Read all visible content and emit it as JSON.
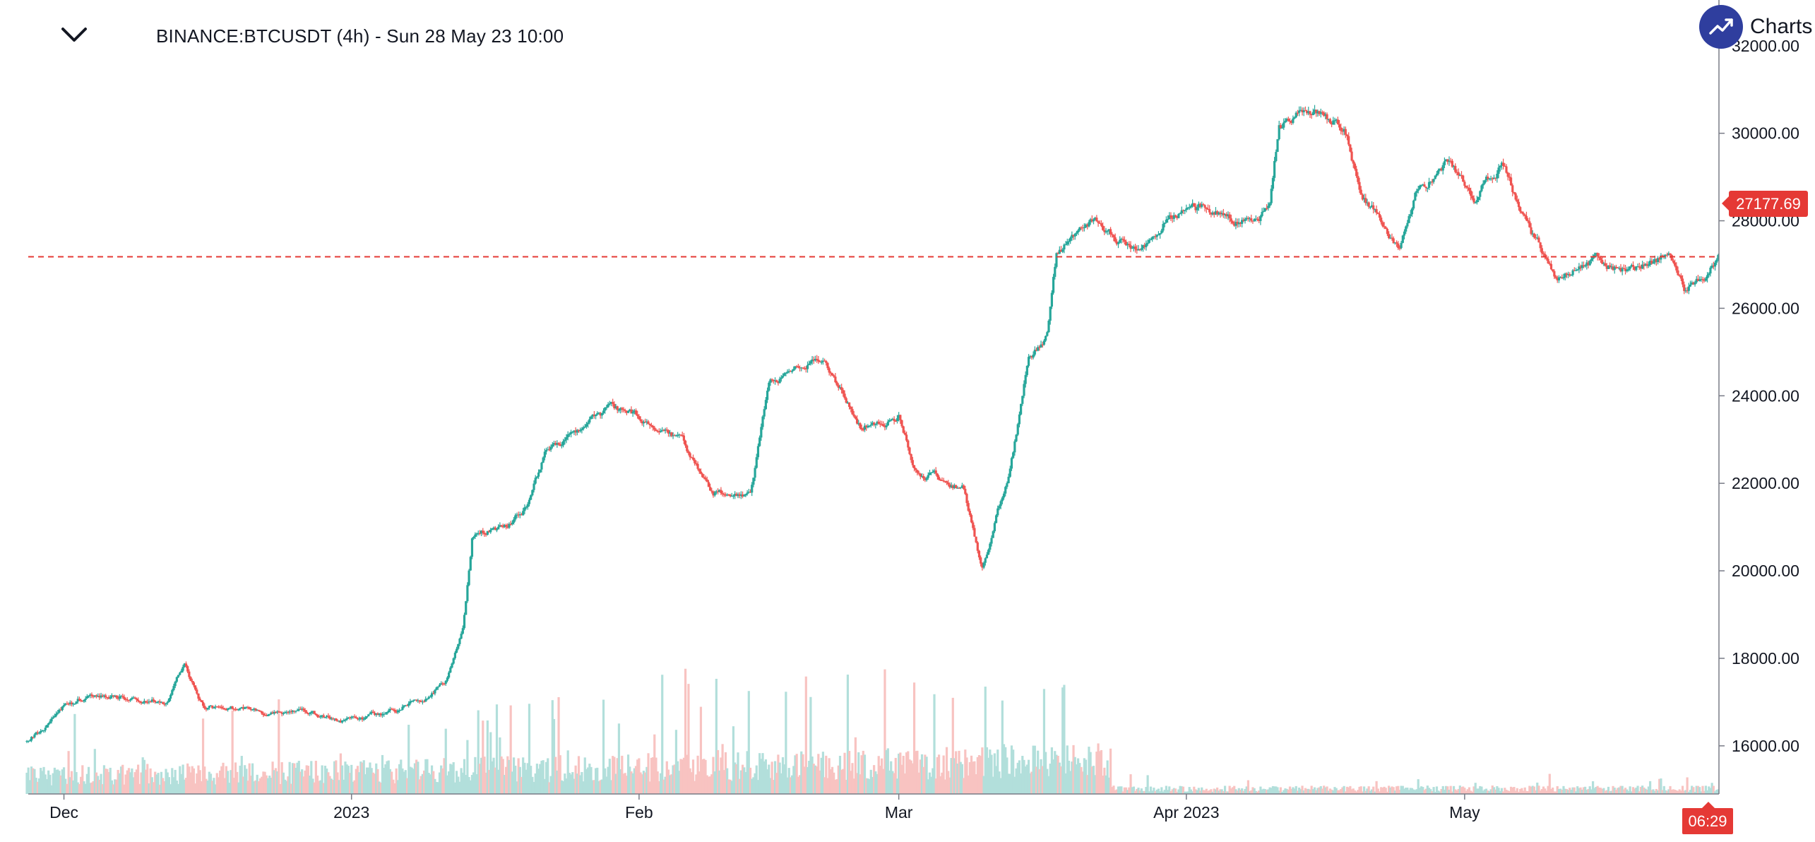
{
  "header": {
    "title": "BINANCE:BTCUSDT (4h) - Sun 28 May 23 10:00",
    "collapse_icon": "chevron-down-icon"
  },
  "brand": {
    "text": "Charts powered by TradingView",
    "logo_icon": "trend-up-icon",
    "logo_color": "#2f3e9e"
  },
  "last_price": {
    "label": "27177.69",
    "value": 27177.69,
    "color": "#e53935"
  },
  "countdown": {
    "label": "06:29"
  },
  "colors": {
    "up": "#26a69a",
    "down": "#ef5350",
    "volume_up": "#b2dfdb",
    "volume_down": "#f8c3c1",
    "axis": "#787b86",
    "text": "#131722"
  },
  "chart_data": {
    "type": "candlestick",
    "symbol": "BINANCE:BTCUSDT",
    "interval": "4h",
    "x_range": [
      "2022-11-27",
      "2023-05-28T10:00"
    ],
    "y_range": [
      14900,
      32400
    ],
    "x_ticks": [
      {
        "label": "Dec",
        "date": "2022-12-01"
      },
      {
        "label": "2023",
        "date": "2023-01-01"
      },
      {
        "label": "Feb",
        "date": "2023-02-01"
      },
      {
        "label": "Mar",
        "date": "2023-03-01"
      },
      {
        "label": "Apr 2023",
        "date": "2023-04-01"
      },
      {
        "label": "May",
        "date": "2023-05-01"
      }
    ],
    "y_ticks": [
      {
        "label": "32000.00",
        "value": 32000
      },
      {
        "label": "30000.00",
        "value": 30000
      },
      {
        "label": "28000.00",
        "value": 28000
      },
      {
        "label": "26000.00",
        "value": 26000
      },
      {
        "label": "24000.00",
        "value": 24000
      },
      {
        "label": "22000.00",
        "value": 22000
      },
      {
        "label": "20000.00",
        "value": 20000
      },
      {
        "label": "18000.00",
        "value": 18000
      },
      {
        "label": "16000.00",
        "value": 16000
      }
    ],
    "close_path": [
      [
        "2022-11-27",
        16100
      ],
      [
        "2022-11-29",
        16450
      ],
      [
        "2022-12-01",
        16950
      ],
      [
        "2022-12-05",
        17150
      ],
      [
        "2022-12-09",
        17100
      ],
      [
        "2022-12-12",
        17000
      ],
      [
        "2022-12-14",
        17800
      ],
      [
        "2022-12-16",
        16850
      ],
      [
        "2022-12-20",
        16800
      ],
      [
        "2022-12-27",
        16700
      ],
      [
        "2022-12-31",
        16550
      ],
      [
        "2023-01-06",
        16800
      ],
      [
        "2023-01-09",
        17150
      ],
      [
        "2023-01-11",
        17450
      ],
      [
        "2023-01-13",
        18800
      ],
      [
        "2023-01-14",
        20800
      ],
      [
        "2023-01-18",
        21100
      ],
      [
        "2023-01-20",
        21500
      ],
      [
        "2023-01-22",
        22700
      ],
      [
        "2023-01-25",
        23100
      ],
      [
        "2023-01-29",
        23700
      ],
      [
        "2023-02-02",
        23500
      ],
      [
        "2023-02-06",
        22800
      ],
      [
        "2023-02-09",
        21800
      ],
      [
        "2023-02-13",
        21750
      ],
      [
        "2023-02-15",
        24200
      ],
      [
        "2023-02-17",
        24600
      ],
      [
        "2023-02-21",
        24800
      ],
      [
        "2023-02-25",
        23300
      ],
      [
        "2023-03-01",
        23500
      ],
      [
        "2023-03-03",
        22300
      ],
      [
        "2023-03-08",
        21900
      ],
      [
        "2023-03-10",
        20100
      ],
      [
        "2023-03-13",
        22300
      ],
      [
        "2023-03-15",
        24800
      ],
      [
        "2023-03-17",
        25400
      ],
      [
        "2023-03-18",
        27300
      ],
      [
        "2023-03-22",
        28000
      ],
      [
        "2023-03-27",
        27200
      ],
      [
        "2023-03-30",
        28200
      ],
      [
        "2023-04-03",
        28300
      ],
      [
        "2023-04-08",
        28000
      ],
      [
        "2023-04-10",
        28300
      ],
      [
        "2023-04-11",
        30200
      ],
      [
        "2023-04-14",
        30500
      ],
      [
        "2023-04-18",
        30200
      ],
      [
        "2023-04-20",
        28600
      ],
      [
        "2023-04-24",
        27400
      ],
      [
        "2023-04-26",
        28700
      ],
      [
        "2023-04-29",
        29300
      ],
      [
        "2023-05-02",
        28500
      ],
      [
        "2023-05-05",
        29300
      ],
      [
        "2023-05-08",
        27800
      ],
      [
        "2023-05-11",
        26700
      ],
      [
        "2023-05-15",
        27100
      ],
      [
        "2023-05-19",
        26900
      ],
      [
        "2023-05-23",
        27200
      ],
      [
        "2023-05-25",
        26300
      ],
      [
        "2023-05-28T10:00",
        27177.69
      ]
    ],
    "volume_regime": [
      {
        "from": "2022-11-27",
        "to": "2023-03-24",
        "level": "high"
      },
      {
        "from": "2023-03-24",
        "to": "2023-05-28T10:00",
        "level": "low"
      }
    ]
  }
}
